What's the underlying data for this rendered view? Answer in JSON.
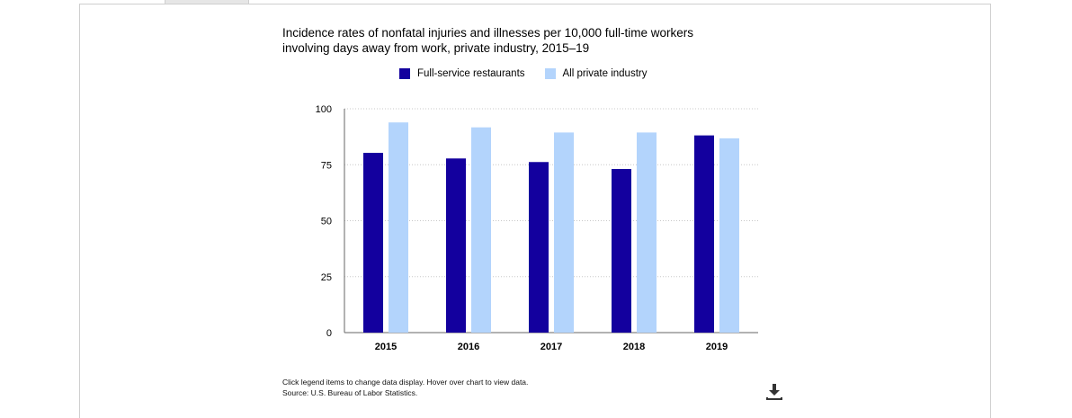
{
  "chart_data": {
    "type": "bar",
    "title": "Incidence rates of nonfatal injuries and illnesses per 10,000 full-time workers\ninvolving days away from work, private industry, 2015–19",
    "categories": [
      "2015",
      "2016",
      "2017",
      "2018",
      "2019"
    ],
    "series": [
      {
        "name": "Full-service restaurants",
        "color": "#13009e",
        "values": [
          80.3,
          77.8,
          76.2,
          73.1,
          88.1
        ]
      },
      {
        "name": "All private industry",
        "color": "#b3d4fc",
        "values": [
          93.9,
          91.7,
          89.4,
          89.4,
          86.8
        ]
      }
    ],
    "ylim": [
      0,
      100
    ],
    "yticks": [
      0,
      25,
      50,
      75,
      100
    ],
    "xlabel": "",
    "ylabel": "",
    "grid": true,
    "legend_position": "top"
  },
  "footnote": {
    "line1": "Click legend items to change data display. Hover over chart to view data.",
    "line2": "Source: U.S. Bureau of Labor Statistics."
  },
  "icons": {
    "download": "download-icon"
  }
}
